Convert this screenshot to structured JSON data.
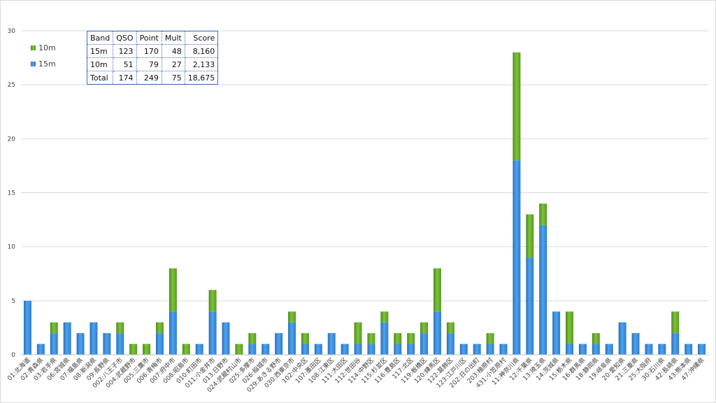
{
  "chart_data": {
    "type": "bar",
    "stacked": true,
    "ylim": [
      0,
      30
    ],
    "yticks": [
      0,
      5,
      10,
      15,
      20,
      25,
      30
    ],
    "grid": true,
    "legend_position": "top-left",
    "categories": [
      "01:北海道",
      "02:青森県",
      "03:岩手県",
      "06:宮城県",
      "07:福島県",
      "08:新潟県",
      "09:長野県",
      "002:八王子市",
      "004:武蔵野市",
      "005:三鷹市",
      "006:青梅市",
      "007:府中市",
      "008:昭島市",
      "010:町田市",
      "011:小金井市",
      "013:日野市",
      "024:武蔵村山市",
      "025:多摩市",
      "026:稲城市",
      "029:あきる野市",
      "030:西東京市",
      "102:中央区",
      "107:墨田区",
      "108:江東区",
      "111:大田区",
      "112:世田谷",
      "114:中野区",
      "115:杉並区",
      "116:豊島区",
      "117:北区",
      "119:板橋区",
      "120:練馬区",
      "122:葛飾区",
      "123:江戸川区",
      "202:日の出町",
      "203:檜原村",
      "431:小笠原村",
      "11:神奈川県",
      "12:千葉県",
      "13:埼玉県",
      "14:茨城県",
      "15:栃木県",
      "16:群馬県",
      "18:静岡県",
      "19:岐阜県",
      "20:愛知県",
      "21:三重県",
      "25:大阪府",
      "30:石川県",
      "42:長崎県",
      "43:熊本県",
      "47:沖縄県"
    ],
    "series": [
      {
        "name": "15m",
        "color": "#3d8fe0",
        "values": [
          5,
          1,
          2,
          3,
          2,
          3,
          2,
          2,
          0,
          0,
          2,
          4,
          0,
          1,
          4,
          3,
          0,
          1,
          1,
          2,
          3,
          1,
          1,
          2,
          1,
          1,
          1,
          3,
          1,
          1,
          2,
          4,
          2,
          1,
          1,
          1,
          1,
          18,
          9,
          12,
          4,
          1,
          1,
          1,
          1,
          3,
          2,
          1,
          1,
          2,
          1,
          1
        ]
      },
      {
        "name": "10m",
        "color": "#6aaa2a",
        "values": [
          0,
          0,
          1,
          0,
          0,
          0,
          0,
          1,
          1,
          1,
          1,
          4,
          1,
          0,
          2,
          0,
          1,
          1,
          0,
          0,
          1,
          1,
          0,
          0,
          0,
          2,
          1,
          1,
          1,
          1,
          1,
          4,
          1,
          0,
          0,
          1,
          0,
          10,
          4,
          2,
          0,
          3,
          0,
          1,
          0,
          0,
          0,
          0,
          0,
          2,
          0,
          0
        ]
      }
    ],
    "legend": [
      {
        "label": "10m",
        "color": "#6aaa2a"
      },
      {
        "label": "15m",
        "color": "#3d8fe0"
      }
    ]
  },
  "table": {
    "headers": [
      "Band",
      "QSO",
      "Point",
      "Mult",
      "Score"
    ],
    "rows": [
      [
        "15m",
        "123",
        "170",
        "48",
        "8,160"
      ],
      [
        "10m",
        "51",
        "79",
        "27",
        "2,133"
      ],
      [
        "Total",
        "174",
        "249",
        "75",
        "18,675"
      ]
    ]
  }
}
